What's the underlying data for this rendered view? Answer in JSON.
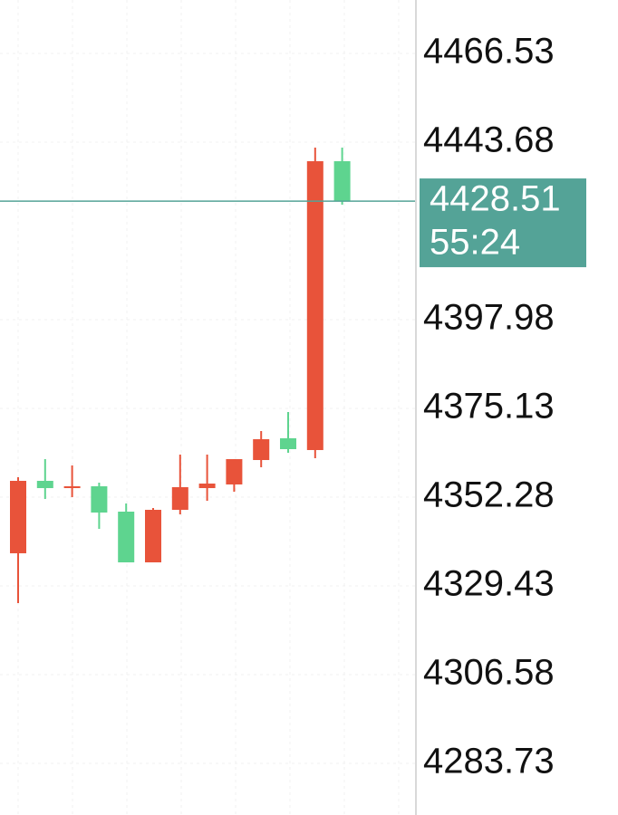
{
  "chart_data": {
    "type": "candlestick",
    "open": [
      4337.83,
      4356.48,
      4354.61,
      4355.08,
      4348.55,
      4335.49,
      4349.02,
      4354.61,
      4355.55,
      4361.84,
      4367.44,
      4364.41,
      4438.78
    ],
    "high": [
      4357.41,
      4362.07,
      4360.44,
      4356.01,
      4350.65,
      4349.48,
      4363.24,
      4363.24,
      4362.07,
      4369.3,
      4374.2,
      4442.28,
      4442.28
    ],
    "low": [
      4325.0,
      4351.81,
      4352.28,
      4344.12,
      4335.49,
      4335.49,
      4347.85,
      4351.35,
      4353.68,
      4359.98,
      4363.71,
      4362.31,
      4427.59
    ],
    "close": [
      4356.48,
      4354.61,
      4355.08,
      4348.32,
      4335.49,
      4349.02,
      4354.85,
      4355.78,
      4362.07,
      4367.2,
      4364.64,
      4438.78,
      4428.51
    ],
    "up_color": "#e8533a",
    "down_color": "#5ed48f",
    "ylim": [
      4270.44,
      4480.29
    ],
    "yticks": [
      4466.53,
      4443.68,
      4397.98,
      4375.13,
      4352.28,
      4329.43,
      4306.58,
      4283.73
    ],
    "grid": true,
    "current_price": 4428.51,
    "price_color": "#54a397",
    "countdown": "55:24"
  }
}
